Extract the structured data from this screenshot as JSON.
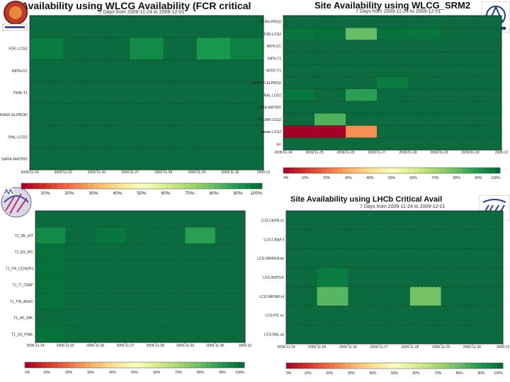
{
  "colors": {
    "good": "#0b6b3e",
    "scale": [
      "#a50026",
      "#d73027",
      "#f46d43",
      "#fdae61",
      "#fee08b",
      "#ffffbf",
      "#d9ef8b",
      "#a6d96a",
      "#66bd63",
      "#1a9850",
      "#006837"
    ]
  },
  "icons": [
    "atlas-logo",
    "alice-logo",
    "cms-logo",
    "lhcb-logo"
  ],
  "chart_data": [
    {
      "type": "heatmap",
      "title": "Availability using WLCG Availability (FCR critical",
      "subtitle": "7 Days from 2009-11-24 to 2009-12-01",
      "rows": [
        "",
        "FZK-LCG2",
        "INFN-CC",
        "PHN-T1",
        "NIKHEF-ELPROD",
        "RAL-LCG2",
        "SARA-MATRIX"
      ],
      "x_ticks": [
        "2009-11-24",
        "2009-11-25",
        "2009-11-26",
        "2009-11-27",
        "2009-11-28",
        "2009-11-29",
        "2009-11-30",
        "2009-12"
      ],
      "values": [
        [
          100,
          100,
          100,
          100,
          100,
          100,
          100
        ],
        [
          96,
          100,
          100,
          93,
          100,
          90,
          95
        ],
        [
          100,
          100,
          100,
          100,
          100,
          100,
          100
        ],
        [
          100,
          100,
          100,
          100,
          100,
          100,
          100
        ],
        [
          100,
          100,
          100,
          100,
          100,
          100,
          100
        ],
        [
          100,
          100,
          100,
          100,
          100,
          100,
          100
        ],
        [
          100,
          100,
          100,
          100,
          100,
          100,
          100
        ]
      ],
      "colorbar": [
        "",
        "10%",
        "20%",
        "30%",
        "40%",
        "50%",
        "60%",
        "70%",
        "80%",
        "90%",
        "100%"
      ],
      "vlim": [
        0,
        100
      ]
    },
    {
      "type": "heatmap",
      "title": "Site Availability using WLCG_SRM2",
      "subtitle": "7 Days from 2009-11-24 to 2009-12-01",
      "rows": [
        "CERN-PROD",
        "FZK-LCG2",
        "INFN-CC",
        "INFN-T1",
        "NDGF-T1",
        "NIKHEF-ELPROD",
        "RAL-LCG2",
        "SARA-MATRIX",
        "TRIUMF-LCG2",
        "Taiwan-LCG2",
        "pic"
      ],
      "x_ticks": [
        "2009-11-24",
        "2009-11-25",
        "2009-11-26",
        "2009-11-27",
        "2009-11-28",
        "2009-11-29",
        "2009-11-30",
        "2009-12"
      ],
      "values": [
        [
          100,
          100,
          100,
          100,
          100,
          100,
          100
        ],
        [
          97,
          98,
          80,
          98,
          97,
          100,
          100
        ],
        [
          100,
          100,
          100,
          100,
          100,
          100,
          100
        ],
        [
          100,
          100,
          100,
          100,
          100,
          100,
          100
        ],
        [
          100,
          100,
          100,
          100,
          100,
          100,
          100
        ],
        [
          100,
          100,
          100,
          96,
          100,
          100,
          100
        ],
        [
          97,
          100,
          88,
          100,
          100,
          100,
          100
        ],
        [
          100,
          100,
          100,
          100,
          100,
          100,
          100
        ],
        [
          100,
          83,
          100,
          100,
          100,
          100,
          100
        ],
        [
          0,
          0,
          25,
          100,
          100,
          100,
          100
        ],
        [
          100,
          100,
          100,
          100,
          100,
          100,
          100
        ]
      ],
      "colorbar": [
        "0%",
        "10%",
        "20%",
        "30%",
        "40%",
        "50%",
        "60%",
        "70%",
        "80%",
        "90%",
        "100%"
      ],
      "vlim": [
        0,
        100
      ]
    },
    {
      "type": "heatmap",
      "title": "",
      "subtitle": "",
      "rows": [
        "",
        "T1_DE_KIT",
        "T1_ES_PIC",
        "T1_FR_CCIN2P3",
        "T1_IT_CNAF",
        "T1_TW_ASGC",
        "T1_UK_RAL",
        "T1_US_FNAL"
      ],
      "x_ticks": [
        "2009-11-24",
        "2009-11-25",
        "2009-11-26",
        "2009-11-27",
        "2009-11-28",
        "2009-11-29",
        "2009-11-30",
        "2009-12"
      ],
      "values": [
        [
          100,
          100,
          100,
          100,
          100,
          100,
          100
        ],
        [
          93,
          100,
          97,
          100,
          100,
          88,
          100
        ],
        [
          98,
          100,
          100,
          100,
          100,
          100,
          100
        ],
        [
          98,
          100,
          100,
          100,
          100,
          100,
          100
        ],
        [
          98,
          100,
          100,
          100,
          100,
          100,
          100
        ],
        [
          98,
          100,
          100,
          100,
          100,
          100,
          100
        ],
        [
          100,
          100,
          100,
          100,
          100,
          100,
          100
        ],
        [
          98,
          100,
          100,
          100,
          100,
          100,
          100
        ]
      ],
      "colorbar": [
        "0%",
        "10%",
        "20%",
        "30%",
        "40%",
        "50%",
        "60%",
        "70%",
        "80%",
        "90%",
        "100%"
      ],
      "vlim": [
        0,
        100
      ]
    },
    {
      "type": "heatmap",
      "title": "Site Availability using LHCb Critical Avail",
      "subtitle": "7 Days from 2009-11-24 to 2009-12-01",
      "rows": [
        "LCG.CERN.ch",
        "LCG.CNAF.it",
        "LCG.GRIDKA.de",
        "LCG.IN2P3.fr",
        "LCG.NIKHEF.nl",
        "LCG.PIC.es",
        "LCG.RAL.uk"
      ],
      "x_ticks": [
        "2009-11-24",
        "2009-11-25",
        "2009-11-26",
        "2009-11-27",
        "2009-11-28",
        "2009-11-29",
        "2009-11-30",
        "2009-12"
      ],
      "values": [
        [
          100,
          100,
          100,
          100,
          100,
          100,
          100
        ],
        [
          100,
          100,
          100,
          100,
          100,
          100,
          100
        ],
        [
          100,
          100,
          100,
          100,
          100,
          100,
          100
        ],
        [
          100,
          96,
          100,
          100,
          100,
          100,
          100
        ],
        [
          100,
          82,
          100,
          100,
          78,
          100,
          100
        ],
        [
          100,
          100,
          100,
          100,
          100,
          100,
          100
        ],
        [
          100,
          100,
          100,
          100,
          100,
          100,
          100
        ]
      ],
      "colorbar": [
        "0%",
        "10%",
        "20%",
        "30%",
        "40%",
        "50%",
        "60%",
        "70%",
        "80%",
        "90%",
        "100%"
      ],
      "vlim": [
        0,
        100
      ]
    }
  ]
}
